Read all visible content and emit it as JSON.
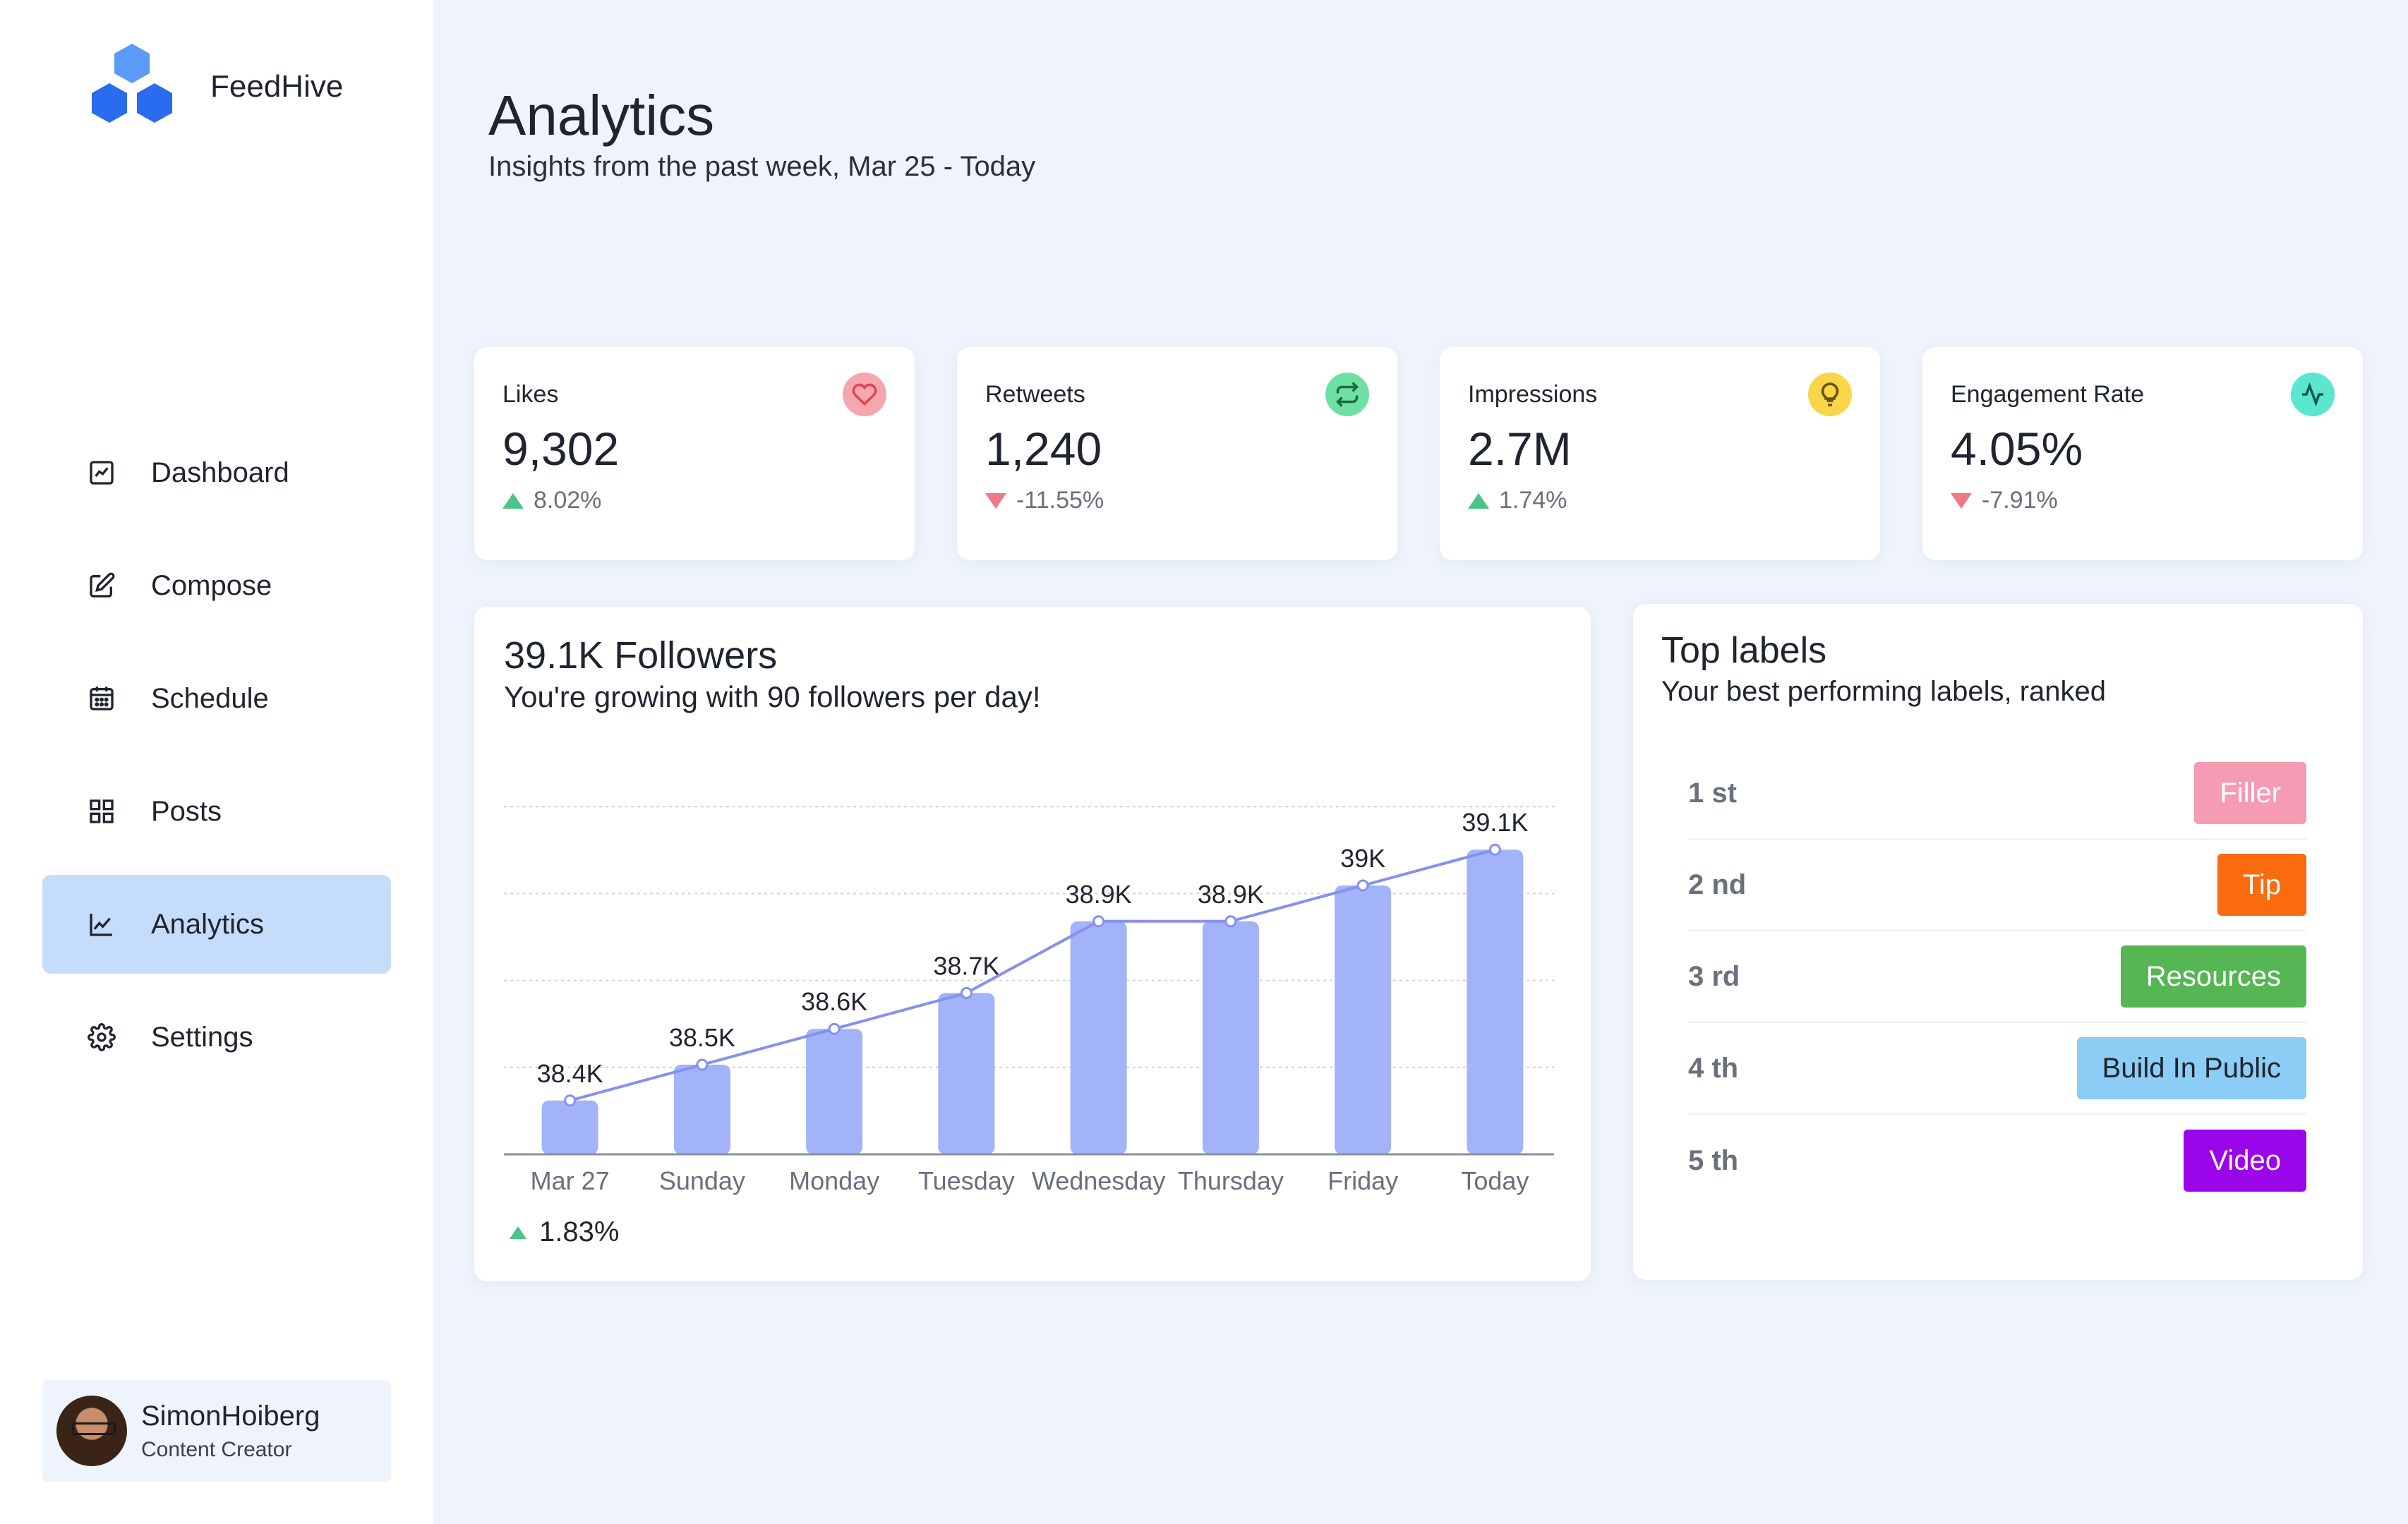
{
  "brand": {
    "name": "FeedHive"
  },
  "nav": {
    "items": [
      {
        "label": "Dashboard",
        "icon": "dashboard-icon",
        "active": false
      },
      {
        "label": "Compose",
        "icon": "compose-icon",
        "active": false
      },
      {
        "label": "Schedule",
        "icon": "calendar-icon",
        "active": false
      },
      {
        "label": "Posts",
        "icon": "grid-icon",
        "active": false
      },
      {
        "label": "Analytics",
        "icon": "chart-icon",
        "active": true
      },
      {
        "label": "Settings",
        "icon": "gear-icon",
        "active": false
      }
    ]
  },
  "profile": {
    "name": "SimonHoiberg",
    "role": "Content Creator"
  },
  "header": {
    "title": "Analytics",
    "subtitle": "Insights from the past week, Mar 25 - Today"
  },
  "stats": [
    {
      "label": "Likes",
      "value": "9,302",
      "change": "8.02%",
      "direction": "up",
      "icon": "heart-icon",
      "icon_bg": "#f4a8ae",
      "icon_color": "#e04553"
    },
    {
      "label": "Retweets",
      "value": "1,240",
      "change": "-11.55%",
      "direction": "down",
      "icon": "retweet-icon",
      "icon_bg": "#6fe0a4",
      "icon_color": "#1d6b45"
    },
    {
      "label": "Impressions",
      "value": "2.7M",
      "change": "1.74%",
      "direction": "up",
      "icon": "lightbulb-icon",
      "icon_bg": "#f9d548",
      "icon_color": "#6b5300"
    },
    {
      "label": "Engagement Rate",
      "value": "4.05%",
      "change": "-7.91%",
      "direction": "down",
      "icon": "activity-icon",
      "icon_bg": "#5ae6cf",
      "icon_color": "#0f5a4e"
    }
  ],
  "followers": {
    "title": "39.1K Followers",
    "subtitle": "You're growing with 90 followers per day!",
    "change": "1.83%"
  },
  "chart_data": {
    "type": "bar",
    "categories": [
      "Mar 27",
      "Sunday",
      "Monday",
      "Tuesday",
      "Wednesday",
      "Thursday",
      "Friday",
      "Today"
    ],
    "values": [
      38.4,
      38.5,
      38.6,
      38.7,
      38.9,
      38.9,
      39.0,
      39.1
    ],
    "data_labels": [
      "38.4K",
      "38.5K",
      "38.6K",
      "38.7K",
      "38.9K",
      "38.9K",
      "39K",
      "39.1K"
    ],
    "line_overlay": true,
    "ylim": [
      38.25,
      39.25
    ],
    "grid": true,
    "bar_color": "#a3b3f9",
    "line_color": "#8690ee"
  },
  "top_labels": {
    "title": "Top labels",
    "subtitle": "Your best performing labels, ranked",
    "items": [
      {
        "rank": "1 st",
        "label": "Filler",
        "color": "#f59bb4"
      },
      {
        "rank": "2 nd",
        "label": "Tip",
        "color": "#fa6b0f"
      },
      {
        "rank": "3 rd",
        "label": "Resources",
        "color": "#55b653"
      },
      {
        "rank": "4 th",
        "label": "Build In Public",
        "color": "#8ccdf5"
      },
      {
        "rank": "5 th",
        "label": "Video",
        "color": "#9a05ea"
      }
    ]
  }
}
